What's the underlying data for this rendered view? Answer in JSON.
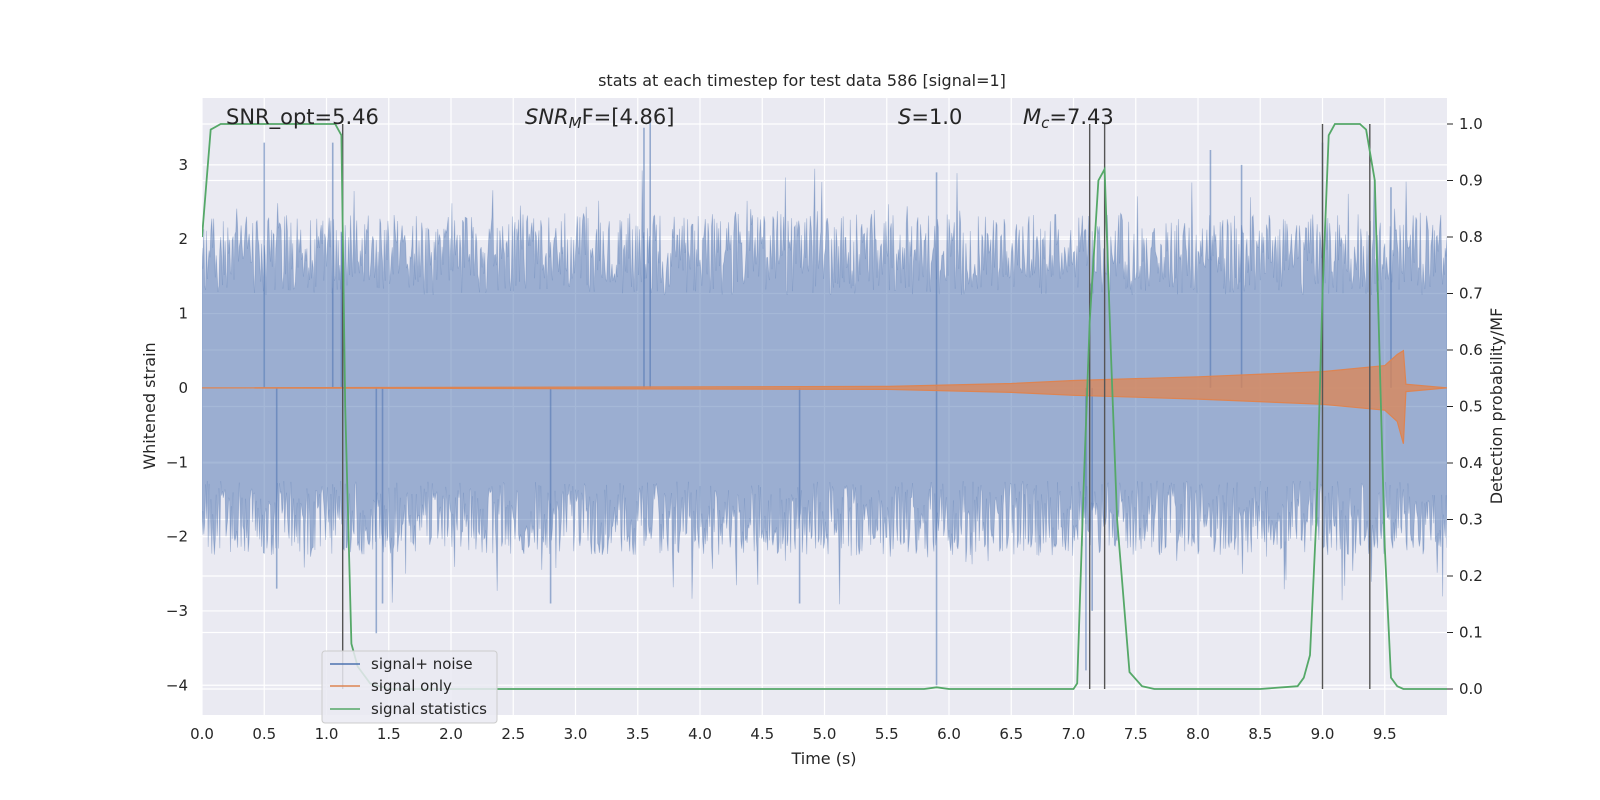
{
  "chart_data": {
    "type": "line",
    "title": "stats at each timestep for test data 586 [signal=1]",
    "xlabel": "Time (s)",
    "ylabel": "Whitened strain",
    "y2label": "Detection probability/MF",
    "xlim": [
      0.0,
      10.0
    ],
    "ylim": [
      -4.4,
      3.9
    ],
    "y2lim": [
      -0.046,
      1.046
    ],
    "x_ticks": [
      "0.0",
      "0.5",
      "1.0",
      "1.5",
      "2.0",
      "2.5",
      "3.0",
      "3.5",
      "4.0",
      "4.5",
      "5.0",
      "5.5",
      "6.0",
      "6.5",
      "7.0",
      "7.5",
      "8.0",
      "8.5",
      "9.0",
      "9.5"
    ],
    "y_ticks": [
      "3",
      "2",
      "1",
      "0",
      "−1",
      "−2",
      "−3",
      "−4"
    ],
    "y2_ticks": [
      "1.0",
      "0.9",
      "0.8",
      "0.7",
      "0.6",
      "0.5",
      "0.4",
      "0.3",
      "0.2",
      "0.1",
      "0.0"
    ],
    "grid": true,
    "legend_position": "bottom-left",
    "annotations": {
      "snr_opt": "SNR_opt=5.46",
      "snr_mf_italic": "SNR",
      "snr_mf_sub": "M",
      "snr_mf_rest": "F=[4.86]",
      "s_italic": "S",
      "s_rest": "=1.0",
      "mc_italic": "M",
      "mc_sub": "c",
      "mc_rest": "=7.43"
    },
    "series": [
      {
        "name": "signal+ noise",
        "color": "#4c72b0",
        "description_range": "noise band roughly ±1.5 with spikes to ±3.5",
        "spikes": [
          {
            "x": 0.5,
            "y": 3.3
          },
          {
            "x": 1.05,
            "y": 3.3
          },
          {
            "x": 1.12,
            "y": 2.1
          },
          {
            "x": 1.4,
            "y": -3.3
          },
          {
            "x": 3.55,
            "y": 3.5
          },
          {
            "x": 3.6,
            "y": 3.6
          },
          {
            "x": 5.9,
            "y": 2.9
          },
          {
            "x": 5.9,
            "y": -4.0
          },
          {
            "x": 7.15,
            "y": -3.0
          },
          {
            "x": 0.6,
            "y": -2.7
          },
          {
            "x": 1.45,
            "y": -2.9
          },
          {
            "x": 2.8,
            "y": -2.9
          },
          {
            "x": 4.8,
            "y": -2.9
          },
          {
            "x": 7.1,
            "y": -3.8
          },
          {
            "x": 8.1,
            "y": 3.2
          },
          {
            "x": 8.35,
            "y": 3.0
          },
          {
            "x": 9.55,
            "y": 2.7
          },
          {
            "x": 9.0,
            "y": 3.3
          }
        ]
      },
      {
        "name": "signal only",
        "color": "#dd8452",
        "envelope": [
          [
            0.0,
            0.0
          ],
          [
            5.5,
            0.02
          ],
          [
            6.5,
            0.06
          ],
          [
            7.0,
            0.1
          ],
          [
            8.0,
            0.15
          ],
          [
            9.0,
            0.22
          ],
          [
            9.5,
            0.3
          ],
          [
            9.6,
            0.45
          ],
          [
            9.65,
            0.5
          ],
          [
            9.67,
            0.05
          ],
          [
            10.0,
            0.0
          ]
        ]
      },
      {
        "name": "signal statistics",
        "color": "#55a868",
        "axis": "y2",
        "x": [
          0.0,
          0.07,
          0.15,
          0.3,
          0.6,
          0.9,
          1.07,
          1.12,
          1.15,
          1.2,
          1.25,
          1.35,
          1.5,
          2.0,
          3.0,
          4.0,
          5.0,
          5.5,
          5.8,
          5.9,
          6.0,
          6.5,
          7.0,
          7.03,
          7.08,
          7.13,
          7.2,
          7.25,
          7.3,
          7.35,
          7.45,
          7.55,
          7.65,
          8.0,
          8.5,
          8.8,
          8.85,
          8.9,
          8.95,
          9.0,
          9.05,
          9.1,
          9.15,
          9.2,
          9.3,
          9.35,
          9.42,
          9.5,
          9.55,
          9.6,
          9.65,
          9.7,
          10.0
        ],
        "y": [
          0.8,
          0.99,
          1.0,
          1.0,
          1.0,
          1.0,
          1.0,
          0.98,
          0.5,
          0.08,
          0.04,
          0.01,
          0.0,
          0.0,
          0.0,
          0.0,
          0.0,
          0.0,
          0.0,
          0.003,
          0.0,
          0.0,
          0.0,
          0.01,
          0.35,
          0.65,
          0.9,
          0.92,
          0.6,
          0.3,
          0.03,
          0.005,
          0.0,
          0.0,
          0.0,
          0.005,
          0.02,
          0.06,
          0.3,
          0.7,
          0.98,
          1.0,
          1.0,
          1.0,
          1.0,
          0.99,
          0.9,
          0.25,
          0.02,
          0.005,
          0.0,
          0.0,
          0.0
        ]
      }
    ],
    "vertical_lines_x": [
      1.13,
      7.13,
      7.25,
      9.0,
      9.38
    ]
  }
}
